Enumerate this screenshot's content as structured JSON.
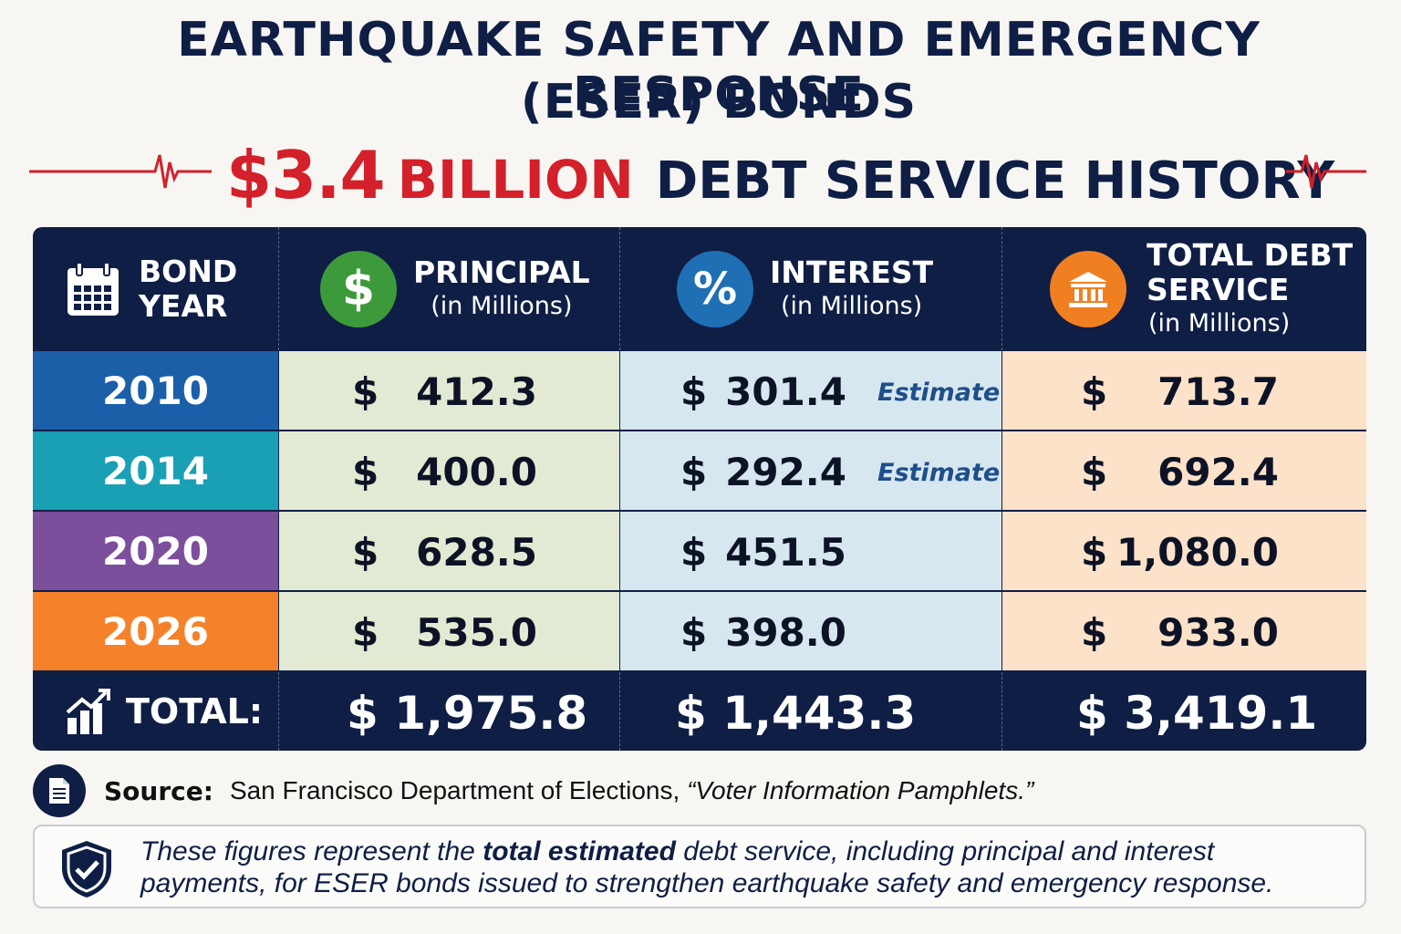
{
  "title": {
    "line1": "EARTHQUAKE SAFETY AND EMERGENCY RESPONSE",
    "line2": "(ESER) BONDS",
    "amount": "$3.4",
    "billion": "BILLION",
    "rest": "DEBT SERVICE HISTORY"
  },
  "headers": {
    "year": {
      "line1": "BOND",
      "line2": "YEAR",
      "icon": "calendar-icon"
    },
    "principal": {
      "title": "PRINCIPAL",
      "sub": "(in Millions)",
      "icon": "dollar-icon",
      "icon_glyph": "$",
      "color": "#3d9a3a"
    },
    "interest": {
      "title": "INTEREST",
      "sub": "(in Millions)",
      "icon": "percent-icon",
      "icon_glyph": "%",
      "color": "#1f6fb5"
    },
    "total": {
      "line1": "TOTAL DEBT",
      "line2": "SERVICE",
      "sub": "(in Millions)",
      "icon": "bank-icon",
      "color": "#f07f22"
    }
  },
  "rows": [
    {
      "year": "2010",
      "color": "#1a5fa8",
      "principal": "412.3",
      "interest": "301.4",
      "note": "Estimate",
      "total": "713.7"
    },
    {
      "year": "2014",
      "color": "#19a0b5",
      "principal": "400.0",
      "interest": "292.4",
      "note": "Estimate",
      "total": "692.4"
    },
    {
      "year": "2020",
      "color": "#7c4f9c",
      "principal": "628.5",
      "interest": "451.5",
      "note": "",
      "total": "1,080.0"
    },
    {
      "year": "2026",
      "color": "#f5822a",
      "principal": "535.0",
      "interest": "398.0",
      "note": "",
      "total": "933.0"
    }
  ],
  "currency": "$",
  "totals": {
    "label": "TOTAL:",
    "icon": "growth-chart-icon",
    "principal": "$ 1,975.8",
    "interest": "$ 1,443.3",
    "total": "$ 3,419.1"
  },
  "source": {
    "label": "Source:",
    "text_prefix": "San Francisco Department of Elections, ",
    "text_italic": "“Voter Information Pamphlets.”",
    "icon": "document-icon"
  },
  "note": {
    "icon": "shield-check-icon",
    "before": "These figures represent the ",
    "bold": "total estimated",
    "after": " debt service, including principal and interest payments, for ESER bonds issued to strengthen earthquake safety and emergency response."
  }
}
